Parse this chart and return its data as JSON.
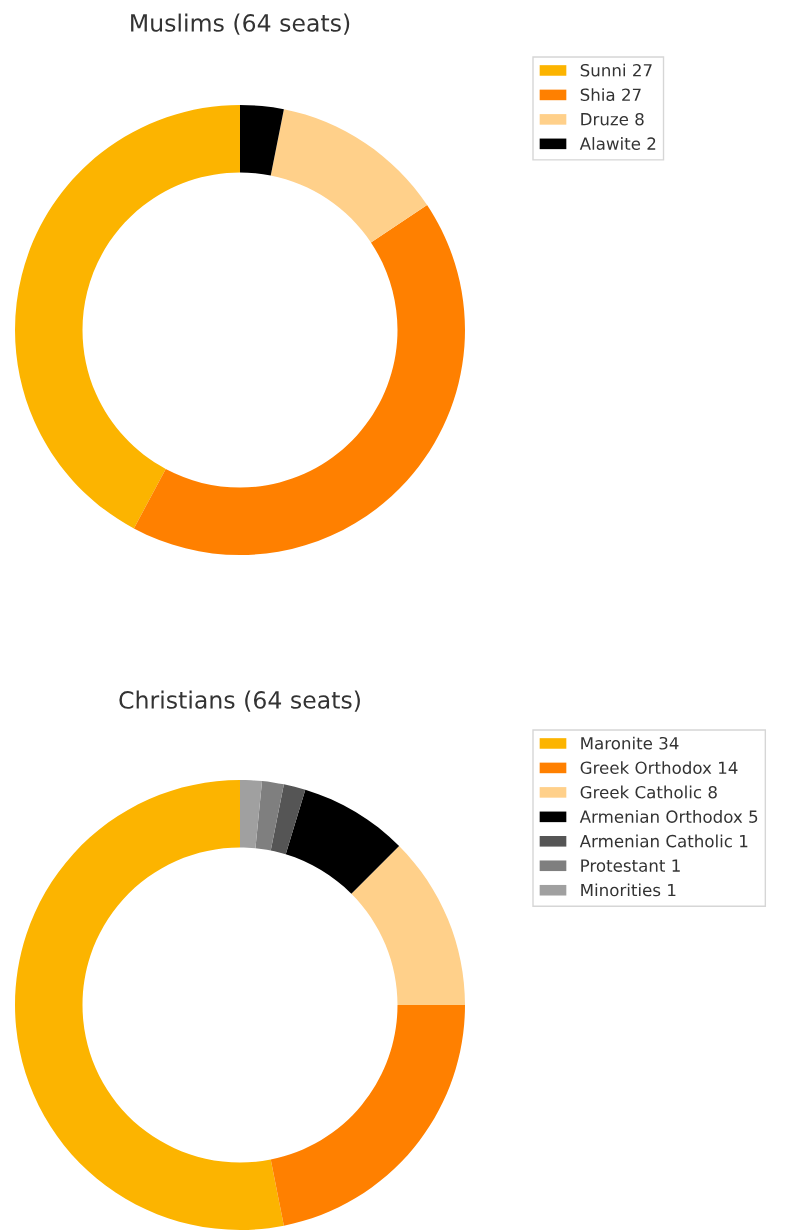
{
  "chart_data": [
    {
      "type": "donut",
      "title": "Muslims (64 seats)",
      "categories": [
        "Sunni 27",
        "Shia 27",
        "Druze 8",
        "Alawite 2"
      ],
      "values": [
        27,
        27,
        8,
        2
      ],
      "colors": [
        "#fcb400",
        "#ff8000",
        "#ffd08a",
        "#000000"
      ],
      "legend": "right"
    },
    {
      "type": "donut",
      "title": "Christians (64 seats)",
      "categories": [
        "Maronite 34",
        "Greek Orthodox 14",
        "Greek Catholic 8",
        "Armenian Orthodox 5",
        "Armenian Catholic 1",
        "Protestant 1",
        "Minorities 1"
      ],
      "values": [
        34,
        14,
        8,
        5,
        1,
        1,
        1
      ],
      "colors": [
        "#fcb400",
        "#ff8000",
        "#ffd08a",
        "#000000",
        "#555555",
        "#7f7f7f",
        "#a0a0a0"
      ],
      "legend": "right"
    }
  ]
}
